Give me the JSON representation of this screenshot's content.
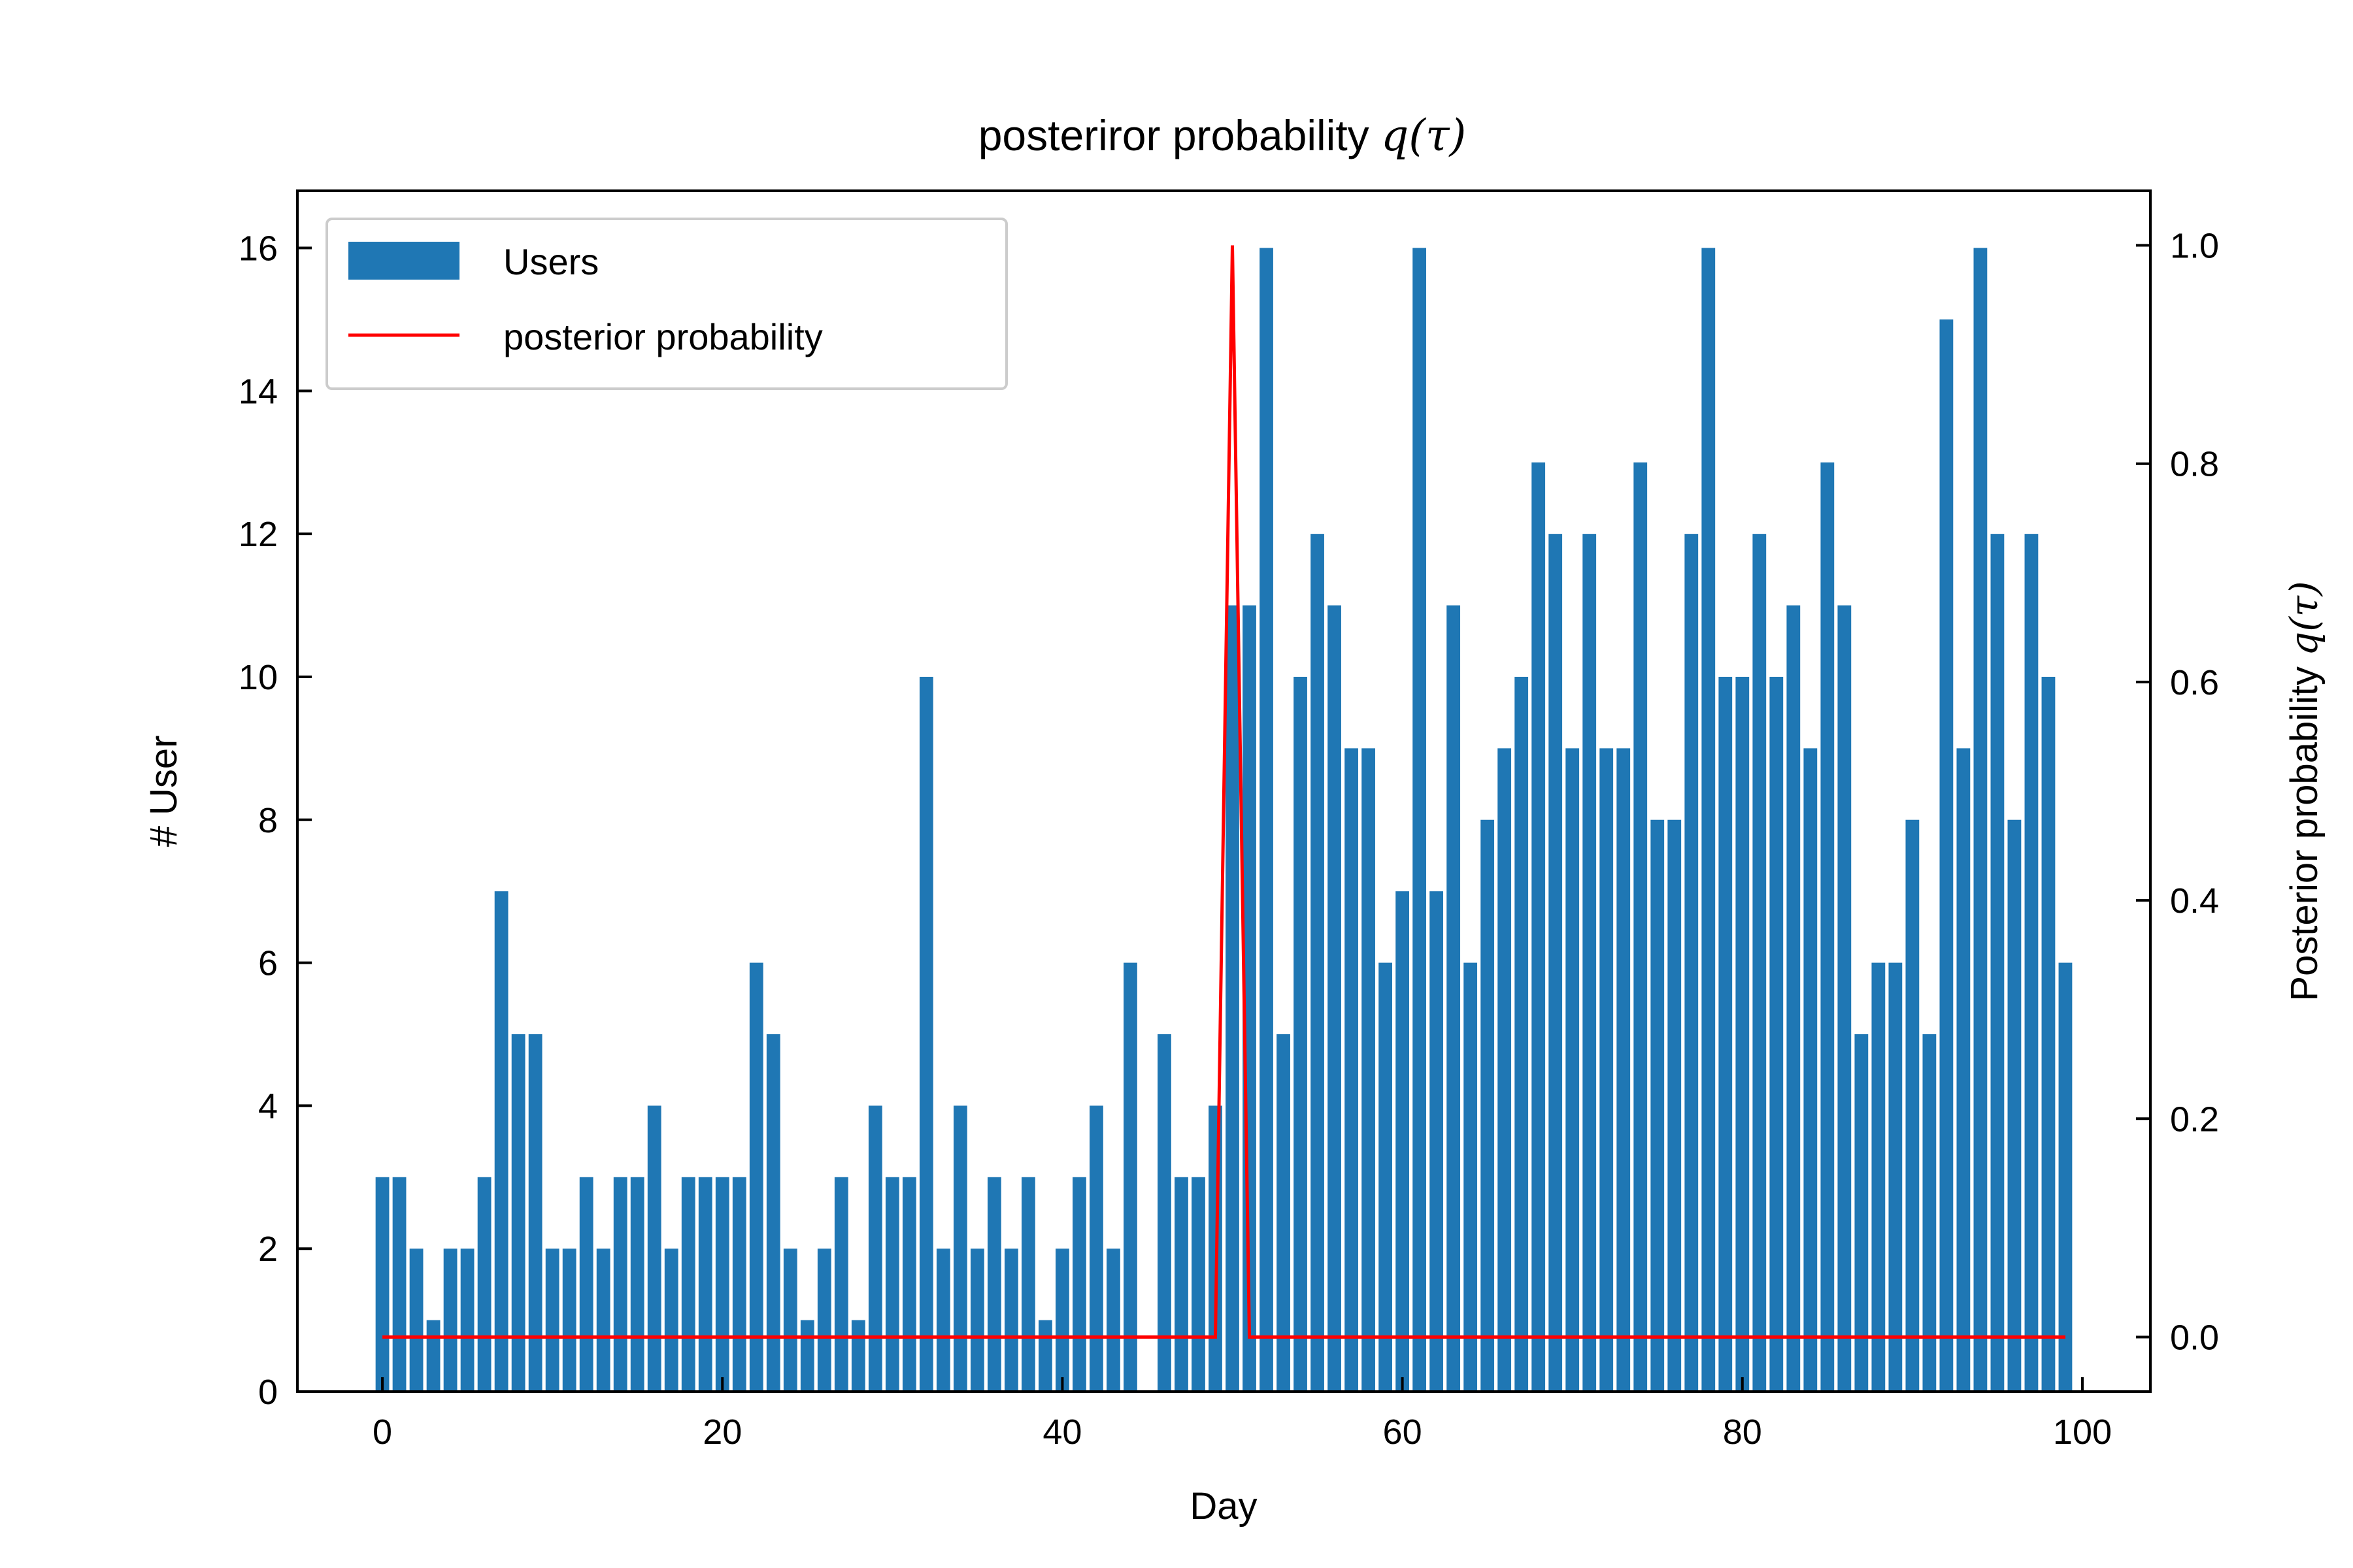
{
  "chart_data": {
    "type": "bar",
    "title": "posteriror probability",
    "title_math": "q(τ)",
    "xlabel": "Day",
    "ylabel": "# User",
    "ylabel_right": "Posterior probability",
    "ylabel_right_math": "q(τ)",
    "xlim": [
      -5,
      104
    ],
    "ylim": [
      0,
      16.8
    ],
    "ylim_right": [
      -0.05,
      1.05
    ],
    "xticks": [
      0,
      20,
      40,
      60,
      80,
      100
    ],
    "yticks": [
      0,
      2,
      4,
      6,
      8,
      10,
      12,
      14,
      16
    ],
    "yticks_right": [
      0.0,
      0.2,
      0.4,
      0.6,
      0.8,
      1.0
    ],
    "xtick_labels": [
      "0",
      "20",
      "40",
      "60",
      "80",
      "100"
    ],
    "ytick_labels": [
      "0",
      "2",
      "4",
      "6",
      "8",
      "10",
      "12",
      "14",
      "16"
    ],
    "ytick_right_labels": [
      "0.0",
      "0.2",
      "0.4",
      "0.6",
      "0.8",
      "1.0"
    ],
    "legend_position": "upper-left",
    "series": [
      {
        "name": "Users",
        "kind": "bar",
        "color": "#1f77b4",
        "x": [
          0,
          1,
          2,
          3,
          4,
          5,
          6,
          7,
          8,
          9,
          10,
          11,
          12,
          13,
          14,
          15,
          16,
          17,
          18,
          19,
          20,
          21,
          22,
          23,
          24,
          25,
          26,
          27,
          28,
          29,
          30,
          31,
          32,
          33,
          34,
          35,
          36,
          37,
          38,
          39,
          40,
          41,
          42,
          43,
          44,
          45,
          46,
          47,
          48,
          49,
          50,
          51,
          52,
          53,
          54,
          55,
          56,
          57,
          58,
          59,
          60,
          61,
          62,
          63,
          64,
          65,
          66,
          67,
          68,
          69,
          70,
          71,
          72,
          73,
          74,
          75,
          76,
          77,
          78,
          79,
          80,
          81,
          82,
          83,
          84,
          85,
          86,
          87,
          88,
          89,
          90,
          91,
          92,
          93,
          94,
          95,
          96,
          97,
          98,
          99
        ],
        "values": [
          3,
          3,
          2,
          1,
          2,
          2,
          3,
          7,
          5,
          5,
          2,
          2,
          3,
          2,
          3,
          3,
          4,
          2,
          3,
          3,
          3,
          3,
          6,
          5,
          2,
          1,
          2,
          3,
          1,
          4,
          3,
          3,
          10,
          2,
          4,
          2,
          3,
          2,
          3,
          1,
          2,
          3,
          4,
          2,
          6,
          0,
          5,
          3,
          3,
          4,
          11,
          11,
          16,
          5,
          10,
          12,
          11,
          9,
          9,
          6,
          7,
          16,
          7,
          11,
          6,
          8,
          9,
          10,
          13,
          12,
          9,
          12,
          9,
          9,
          13,
          8,
          8,
          12,
          16,
          10,
          10,
          12,
          10,
          11,
          9,
          13,
          11,
          5,
          6,
          6,
          8,
          5,
          15,
          9,
          16,
          12,
          8,
          12,
          10,
          6
        ]
      },
      {
        "name": "posterior probability",
        "kind": "line",
        "color": "#ff0000",
        "x": [
          0,
          49,
          50,
          51,
          99
        ],
        "values": [
          0.0,
          0.0,
          1.0,
          0.0,
          0.0
        ]
      }
    ]
  }
}
